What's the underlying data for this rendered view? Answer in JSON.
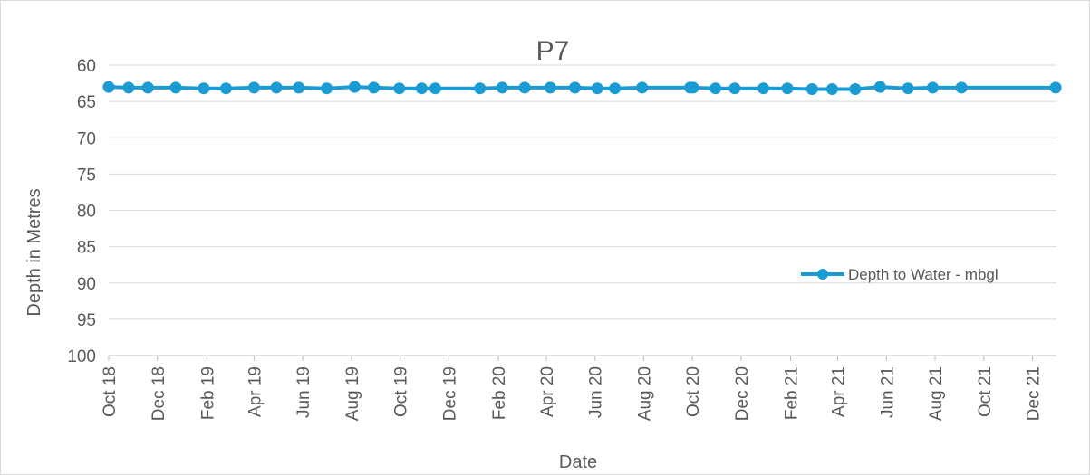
{
  "chart_data": {
    "type": "line",
    "title": "P7",
    "xlabel": "Date",
    "ylabel": "Depth in Metres",
    "y_axis_reversed": true,
    "ylim": [
      60,
      100
    ],
    "y_ticks": [
      "60",
      "65",
      "70",
      "75",
      "80",
      "85",
      "90",
      "95",
      "100"
    ],
    "x_range": [
      "2018-10-01",
      "2021-12-31"
    ],
    "x_ticks": [
      {
        "date": "2018-10-01",
        "label": "Oct 18"
      },
      {
        "date": "2018-12-01",
        "label": "Dec 18"
      },
      {
        "date": "2019-02-01",
        "label": "Feb 19"
      },
      {
        "date": "2019-04-01",
        "label": "Apr 19"
      },
      {
        "date": "2019-06-01",
        "label": "Jun 19"
      },
      {
        "date": "2019-08-01",
        "label": "Aug 19"
      },
      {
        "date": "2019-10-01",
        "label": "Oct 19"
      },
      {
        "date": "2019-12-01",
        "label": "Dec 19"
      },
      {
        "date": "2020-02-01",
        "label": "Feb 20"
      },
      {
        "date": "2020-04-01",
        "label": "Apr 20"
      },
      {
        "date": "2020-06-01",
        "label": "Jun 20"
      },
      {
        "date": "2020-08-01",
        "label": "Aug 20"
      },
      {
        "date": "2020-10-01",
        "label": "Oct 20"
      },
      {
        "date": "2020-12-01",
        "label": "Dec 20"
      },
      {
        "date": "2021-02-01",
        "label": "Feb 21"
      },
      {
        "date": "2021-04-01",
        "label": "Apr 21"
      },
      {
        "date": "2021-06-01",
        "label": "Jun 21"
      },
      {
        "date": "2021-08-01",
        "label": "Aug 21"
      },
      {
        "date": "2021-10-01",
        "label": "Oct 21"
      },
      {
        "date": "2021-12-01",
        "label": "Dec 21"
      }
    ],
    "grid": true,
    "legend_position": "right",
    "series": [
      {
        "name": "Depth to Water - mbgl",
        "color": "#1a9bd3",
        "points": [
          {
            "x": "2018-10-01",
            "y": 63.0
          },
          {
            "x": "2018-10-26",
            "y": 63.1
          },
          {
            "x": "2018-11-19",
            "y": 63.1
          },
          {
            "x": "2018-12-24",
            "y": 63.1
          },
          {
            "x": "2019-01-28",
            "y": 63.2
          },
          {
            "x": "2019-02-25",
            "y": 63.2
          },
          {
            "x": "2019-04-01",
            "y": 63.1
          },
          {
            "x": "2019-04-29",
            "y": 63.1
          },
          {
            "x": "2019-05-27",
            "y": 63.1
          },
          {
            "x": "2019-07-01",
            "y": 63.2
          },
          {
            "x": "2019-08-05",
            "y": 63.0
          },
          {
            "x": "2019-08-29",
            "y": 63.1
          },
          {
            "x": "2019-09-30",
            "y": 63.2
          },
          {
            "x": "2019-10-28",
            "y": 63.2
          },
          {
            "x": "2019-11-14",
            "y": 63.2
          },
          {
            "x": "2020-01-09",
            "y": 63.2
          },
          {
            "x": "2020-02-06",
            "y": 63.1
          },
          {
            "x": "2020-03-05",
            "y": 63.1
          },
          {
            "x": "2020-04-06",
            "y": 63.1
          },
          {
            "x": "2020-05-07",
            "y": 63.1
          },
          {
            "x": "2020-06-04",
            "y": 63.2
          },
          {
            "x": "2020-06-26",
            "y": 63.2
          },
          {
            "x": "2020-07-30",
            "y": 63.1
          },
          {
            "x": "2020-09-28",
            "y": 63.1
          },
          {
            "x": "2020-10-02",
            "y": 63.1
          },
          {
            "x": "2020-10-30",
            "y": 63.2
          },
          {
            "x": "2020-11-23",
            "y": 63.2
          },
          {
            "x": "2020-12-29",
            "y": 63.2
          },
          {
            "x": "2021-01-28",
            "y": 63.2
          },
          {
            "x": "2021-02-28",
            "y": 63.3
          },
          {
            "x": "2021-03-25",
            "y": 63.3
          },
          {
            "x": "2021-04-23",
            "y": 63.3
          },
          {
            "x": "2021-05-24",
            "y": 63.0
          },
          {
            "x": "2021-06-28",
            "y": 63.2
          },
          {
            "x": "2021-07-29",
            "y": 63.1
          },
          {
            "x": "2021-09-03",
            "y": 63.1
          },
          {
            "x": "2021-12-30",
            "y": 63.1
          }
        ]
      }
    ]
  }
}
